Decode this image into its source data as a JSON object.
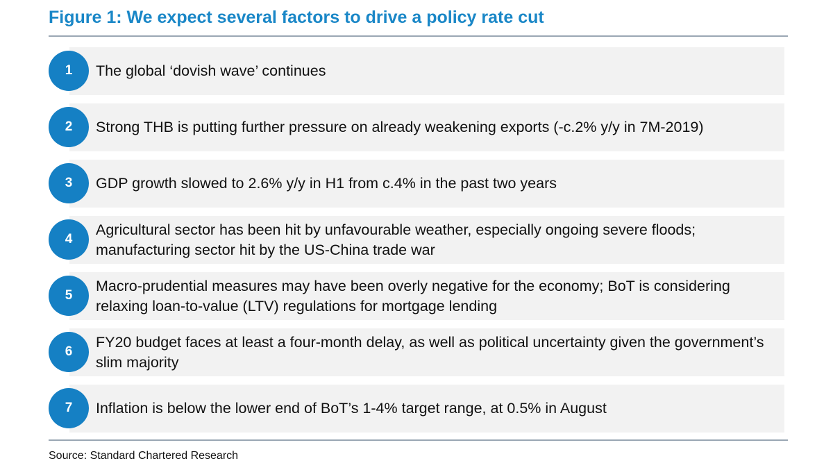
{
  "title": "Figure 1: We expect several factors to drive a policy rate cut",
  "items": [
    {
      "number": "1",
      "text": "The global ‘dovish wave’ continues"
    },
    {
      "number": "2",
      "text": "Strong THB is putting further pressure on already weakening exports (-c.2% y/y in 7M-2019)"
    },
    {
      "number": "3",
      "text": "GDP growth slowed to 2.6% y/y in H1 from c.4% in the past two years"
    },
    {
      "number": "4",
      "text": "Agricultural sector has been hit by unfavourable weather, especially ongoing severe floods; manufacturing sector hit by the US-China trade war"
    },
    {
      "number": "5",
      "text": "Macro-prudential measures may have been overly negative for the economy; BoT is considering relaxing loan-to-value (LTV) regulations for mortgage lending"
    },
    {
      "number": "6",
      "text": "FY20 budget faces at least a four-month delay, as well as political uncertainty given the government’s slim majority"
    },
    {
      "number": "7",
      "text": "Inflation is below the lower end of BoT’s 1-4% target range, at 0.5% in August"
    }
  ],
  "source": "Source: Standard Chartered Research",
  "colors": {
    "title": "#1a87c7",
    "badge": "#1580c4",
    "band": "#f2f2f2",
    "rule": "#9aa7b4"
  }
}
